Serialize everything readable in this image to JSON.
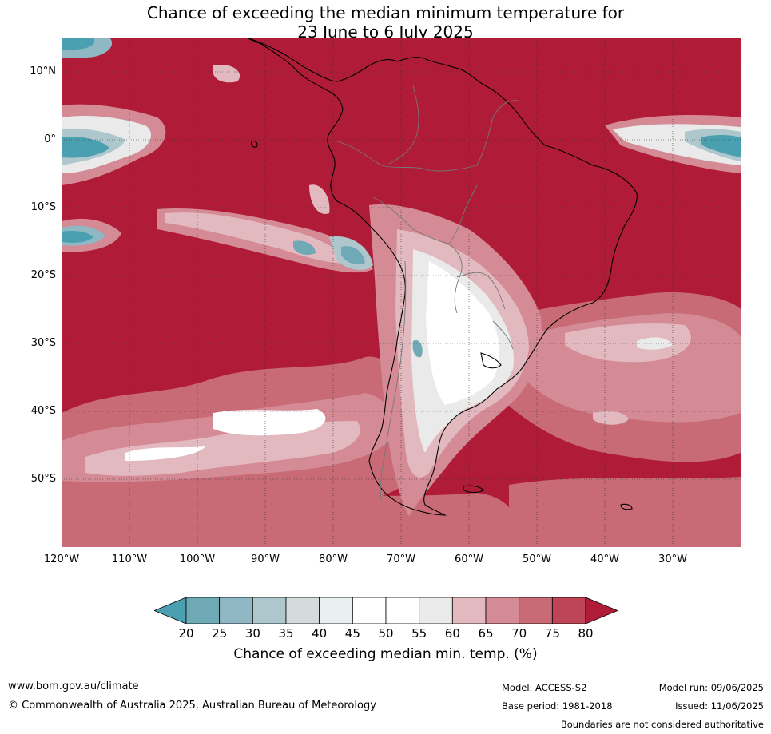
{
  "title": {
    "line1": "Chance of exceeding the median minimum temperature for",
    "line2": "23 June to 6 July 2025"
  },
  "lat_labels": [
    "10°N",
    "0°",
    "10°S",
    "20°S",
    "30°S",
    "40°S",
    "50°S"
  ],
  "lon_labels": [
    "120°W",
    "110°W",
    "100°W",
    "90°W",
    "80°W",
    "70°W",
    "60°W",
    "50°W",
    "40°W",
    "30°W"
  ],
  "colorbar": {
    "ticks": [
      "20",
      "25",
      "30",
      "35",
      "40",
      "45",
      "50",
      "55",
      "60",
      "65",
      "70",
      "75",
      "80"
    ],
    "colors": [
      "#4aa0b0",
      "#6fa9b6",
      "#8fb8c4",
      "#aec7cc",
      "#d3dbdc",
      "#e9f0f2",
      "#ffffff",
      "#ffffff",
      "#ebeaea",
      "#e1b9bf",
      "#d48b95",
      "#c86b77",
      "#be4555",
      "#b01c38"
    ],
    "label": "Chance of exceeding median min. temp. (%)"
  },
  "footer": {
    "website": "www.bom.gov.au/climate",
    "copyright": "© Commonwealth of Australia 2025, Australian Bureau of Meteorology",
    "model": "Model: ACCESS-S2",
    "base_period": "Base period: 1981-2018",
    "model_run": "Model run: 09/06/2025",
    "issued": "Issued: 11/06/2025",
    "disclaimer": "Boundaries are not considered authoritative"
  }
}
